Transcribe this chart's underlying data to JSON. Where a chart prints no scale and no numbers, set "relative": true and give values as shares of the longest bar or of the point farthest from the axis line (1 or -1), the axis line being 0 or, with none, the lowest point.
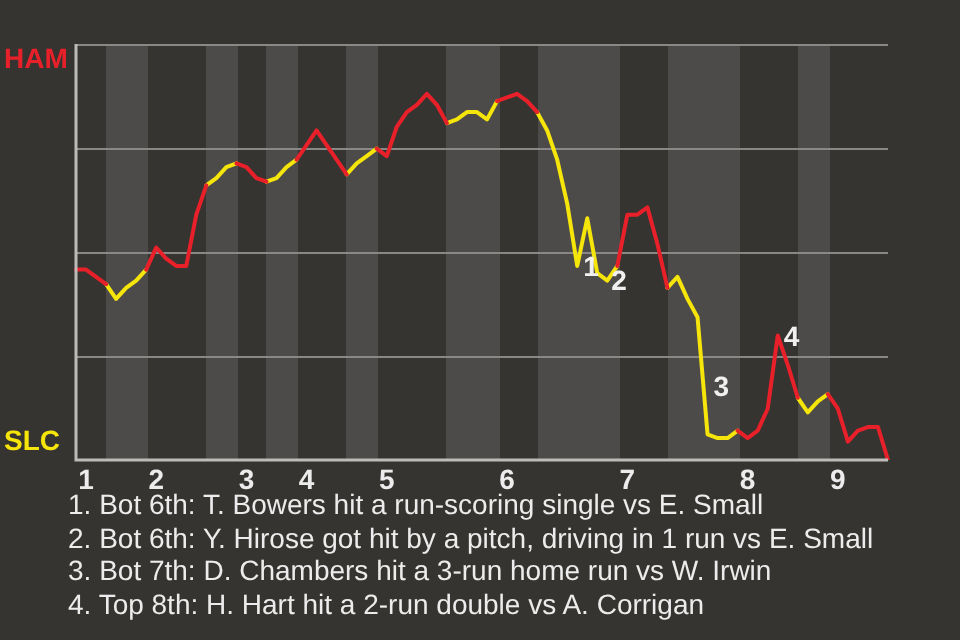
{
  "chart_data": {
    "type": "line",
    "relative": true,
    "categories": [
      null,
      "1",
      null,
      null,
      null,
      null,
      null,
      null,
      "2",
      null,
      null,
      null,
      null,
      null,
      null,
      null,
      null,
      "3",
      null,
      null,
      null,
      null,
      null,
      "4",
      null,
      null,
      null,
      null,
      null,
      null,
      null,
      "5",
      null,
      null,
      null,
      null,
      null,
      null,
      null,
      null,
      null,
      null,
      null,
      "6",
      null,
      null,
      null,
      null,
      null,
      null,
      null,
      null,
      null,
      null,
      null,
      "7",
      null,
      null,
      null,
      null,
      null,
      null,
      null,
      null,
      null,
      null,
      null,
      "8",
      null,
      null,
      null,
      null,
      null,
      null,
      null,
      null,
      "9",
      null,
      null,
      null,
      null,
      null
    ],
    "series": [
      {
        "color": "#e8202a",
        "values": [
          0.52,
          0.52,
          0.5,
          0.48,
          null,
          null,
          null,
          0.52,
          0.58,
          0.55,
          0.53,
          0.53,
          0.67,
          0.75,
          null,
          null,
          0.81,
          0.8,
          0.77,
          0.76,
          null,
          null,
          0.82,
          0.86,
          0.9,
          0.86,
          0.82,
          0.78,
          null,
          null,
          0.85,
          0.83,
          0.91,
          0.95,
          0.97,
          1,
          0.97,
          0.92,
          null,
          null,
          null,
          null,
          0.98,
          0.99,
          1,
          0.98,
          0.95,
          null,
          null,
          null,
          null,
          null,
          null,
          null,
          0.53,
          0.67,
          0.67,
          0.69,
          0.59,
          0.47,
          null,
          null,
          null,
          null,
          null,
          null,
          0.08,
          0.06,
          0.08,
          0.14,
          0.34,
          0.26,
          0.17,
          null,
          null,
          0.18,
          0.14,
          0.05,
          0.08,
          0.09,
          0.09,
          0
        ]
      },
      {
        "color": "#f5e50a",
        "values": [
          null,
          null,
          null,
          0.48,
          0.44,
          0.47,
          0.49,
          0.52,
          null,
          null,
          null,
          null,
          null,
          0.75,
          0.77,
          0.8,
          0.81,
          null,
          null,
          0.76,
          0.77,
          0.8,
          0.82,
          null,
          null,
          null,
          null,
          0.78,
          0.81,
          0.83,
          0.85,
          null,
          null,
          null,
          null,
          null,
          null,
          0.92,
          0.93,
          0.95,
          0.95,
          0.93,
          0.98,
          null,
          null,
          null,
          0.95,
          0.9,
          0.82,
          0.7,
          0.53,
          0.66,
          0.51,
          0.49,
          0.53,
          null,
          null,
          null,
          null,
          0.47,
          0.5,
          0.44,
          0.39,
          0.07,
          0.06,
          0.06,
          0.08,
          null,
          null,
          null,
          null,
          null,
          0.17,
          0.13,
          0.16,
          0.18,
          null,
          null,
          null,
          null,
          null,
          null
        ]
      }
    ],
    "grid": true,
    "legend": false,
    "marker": "none",
    "line_style": "solid",
    "annotations": [
      "HAM",
      "SLC",
      "1",
      "2",
      "3",
      "4",
      "1. Bot 6th: T. Bowers hit a run-scoring single vs E. Small",
      "2. Bot 6th: Y. Hirose got hit by a pitch, driving in 1 run vs E. Small",
      "3. Bot 7th: D. Chambers hit a 3-run home run vs W. Irwin",
      "4. Top 8th: H. Hart hit a 2-run double vs A. Corrigan"
    ]
  }
}
